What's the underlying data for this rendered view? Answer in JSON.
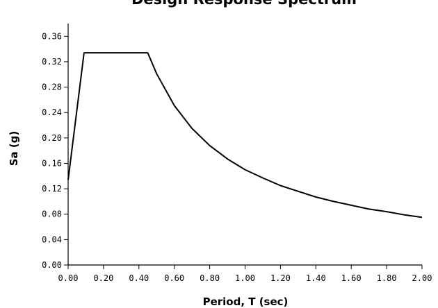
{
  "chart_data": {
    "type": "line",
    "title": "Design Response Spectrum",
    "xlabel": "Period, T (sec)",
    "ylabel": "Sa (g)",
    "xlim": [
      0,
      2.0
    ],
    "ylim": [
      0,
      0.38
    ],
    "x_ticks": [
      "0.00",
      "0.20",
      "0.40",
      "0.60",
      "0.80",
      "1.00",
      "1.20",
      "1.40",
      "1.60",
      "1.80",
      "2.00"
    ],
    "y_ticks": [
      "0.00",
      "0.04",
      "0.08",
      "0.12",
      "0.16",
      "0.20",
      "0.24",
      "0.28",
      "0.32",
      "0.36"
    ],
    "grid": false,
    "legend": "none",
    "line_color": "#000000",
    "series": [
      {
        "x": [
          0.0,
          0.09,
          0.45,
          0.5,
          0.6,
          0.7,
          0.8,
          0.9,
          1.0,
          1.1,
          1.2,
          1.3,
          1.4,
          1.5,
          1.6,
          1.7,
          1.8,
          1.9,
          2.0
        ],
        "y": [
          0.134,
          0.334,
          0.334,
          0.301,
          0.251,
          0.215,
          0.188,
          0.167,
          0.15,
          0.137,
          0.125,
          0.116,
          0.107,
          0.1,
          0.094,
          0.088,
          0.084,
          0.079,
          0.075
        ]
      }
    ]
  }
}
